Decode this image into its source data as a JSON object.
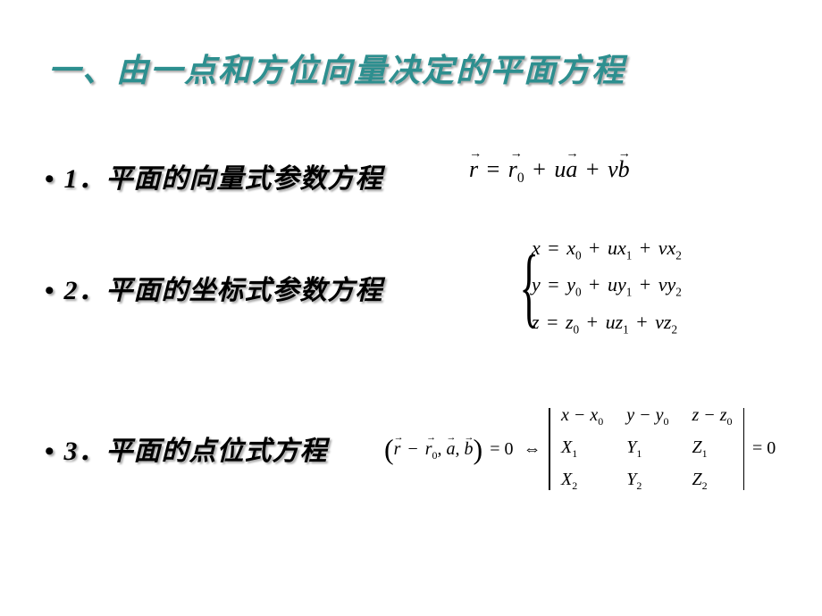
{
  "title": "一、由一点和方位向量决定的平面方程",
  "sections": {
    "s1": {
      "label": "1．平面的向量式参数方程"
    },
    "s2": {
      "label": "2．平面的坐标式参数方程"
    },
    "s3": {
      "label": "3．平面的点位式方程"
    }
  },
  "bullet": "•",
  "formula1": {
    "r": "r",
    "eq": " = ",
    "r0": "r",
    "sub0": "0",
    "plus": " + ",
    "u": "u",
    "a": "a",
    "v": "v",
    "b": "b"
  },
  "formula2": {
    "l1": {
      "x": "x",
      "eq": " = ",
      "x0": "x",
      "s0": "0",
      "p1": " + ",
      "u": "u",
      "x1": "x",
      "s1": "1",
      "p2": " + ",
      "v": "v",
      "x2": "x",
      "s2": "2"
    },
    "l2": {
      "y": "y",
      "eq": " = ",
      "y0": "y",
      "s0": "0",
      "p1": " + ",
      "u": "u",
      "y1": "y",
      "s1": "1",
      "p2": " + ",
      "v": "v",
      "y2": "y",
      "s2": "2"
    },
    "l3": {
      "z": "z",
      "eq": " = ",
      "z0": "z",
      "s0": "0",
      "p1": " + ",
      "u": "u",
      "z1": "z",
      "s1": "1",
      "p2": " + ",
      "v": "v",
      "z2": "z",
      "s2": "2"
    }
  },
  "formula3": {
    "lp": "(",
    "rp": ")",
    "r": "r",
    "minus": " − ",
    "r0": "r",
    "s0": "0",
    "c1": ", ",
    "a": "a",
    "c2": ", ",
    "b": "b",
    "eqz": " = 0",
    "iff": " ⇔ ",
    "det": {
      "r1c1a": "x − x",
      "r1c1s": "0",
      "r1c2a": "y − y",
      "r1c2s": "0",
      "r1c3a": "z − z",
      "r1c3s": "0",
      "r2c1": "X",
      "r2c1s": "1",
      "r2c2": "Y",
      "r2c2s": "1",
      "r2c3": "Z",
      "r2c3s": "1",
      "r3c1": "X",
      "r3c1s": "2",
      "r3c2": "Y",
      "r3c2s": "2",
      "r3c3": "Z",
      "r3c3s": "2"
    },
    "eqz2": " = 0"
  },
  "style": {
    "title_color": "#2d8f8f",
    "title_fontsize": 36,
    "label_fontsize": 30,
    "eq_fontsize": 24,
    "text_color": "#000000",
    "background_color": "#ffffff",
    "shadow": "2px 2px 2px rgba(0,0,0,0.35)"
  }
}
